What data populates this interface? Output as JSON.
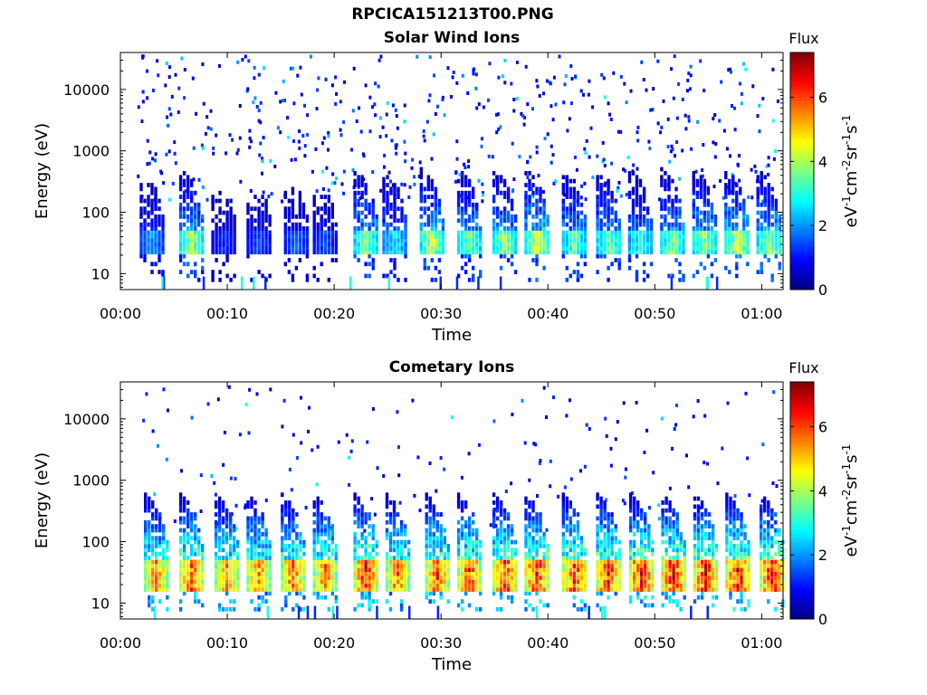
{
  "figure_title": "RPCICA151213T00.PNG",
  "chart_data": [
    {
      "type": "heatmap",
      "title": "Solar Wind Ions",
      "xlabel": "Time",
      "ylabel": "Energy (eV)",
      "x_range": [
        "00:00",
        "01:02"
      ],
      "y_range_eV": [
        5.5,
        40000
      ],
      "y_scale": "log",
      "x_ticks": [
        "00:00",
        "00:10",
        "00:20",
        "00:30",
        "00:40",
        "00:50",
        "01:00"
      ],
      "y_ticks": [
        "10",
        "100",
        "1000",
        "10000"
      ],
      "colorbar": {
        "title": "Flux",
        "label": "eV-1cm-2sr-1s-1",
        "range": [
          0,
          7.4
        ],
        "ticks": [
          "0",
          "2",
          "4",
          "6"
        ],
        "colormap": "jet"
      },
      "pulses_at_minutes": [
        2.8,
        6.5,
        9.5,
        12.8,
        16.3,
        19.0,
        22.8,
        25.5,
        29.0,
        32.5,
        35.8,
        38.8,
        42.3,
        45.5,
        48.5,
        51.5,
        54.5,
        57.5,
        60.5
      ],
      "pulse_peak_flux": [
        2.2,
        4.2,
        1.3,
        1.5,
        1.8,
        1.6,
        4.0,
        3.0,
        4.5,
        4.0,
        4.2,
        4.6,
        3.8,
        3.9,
        3.4,
        4.0,
        4.3,
        4.6,
        4.3
      ],
      "pulse_energy_range_eV": [
        18,
        45
      ]
    },
    {
      "type": "heatmap",
      "title": "Cometary Ions",
      "xlabel": "Time",
      "ylabel": "Energy (eV)",
      "x_range": [
        "00:00",
        "01:02"
      ],
      "y_range_eV": [
        5.5,
        40000
      ],
      "y_scale": "log",
      "x_ticks": [
        "00:00",
        "00:10",
        "00:20",
        "00:30",
        "00:40",
        "00:50",
        "01:00"
      ],
      "y_ticks": [
        "10",
        "100",
        "1000",
        "10000"
      ],
      "colorbar": {
        "title": "Flux",
        "label": "eV-1cm-2sr-1s-1",
        "range": [
          0,
          7.4
        ],
        "ticks": [
          "0",
          "2",
          "4",
          "6"
        ],
        "colormap": "jet"
      },
      "pulses_at_minutes": [
        3.2,
        6.5,
        9.8,
        12.8,
        16.0,
        19.0,
        22.8,
        25.8,
        29.5,
        32.5,
        35.8,
        38.8,
        42.3,
        45.5,
        48.6,
        51.6,
        54.6,
        57.6,
        60.8
      ],
      "pulse_peak_flux": [
        6.0,
        6.4,
        5.8,
        6.0,
        6.2,
        6.0,
        6.8,
        6.2,
        6.5,
        6.6,
        6.8,
        6.9,
        6.8,
        6.9,
        7.0,
        7.0,
        7.0,
        7.1,
        7.0
      ],
      "pulse_energy_range_eV": [
        15,
        50
      ]
    }
  ]
}
